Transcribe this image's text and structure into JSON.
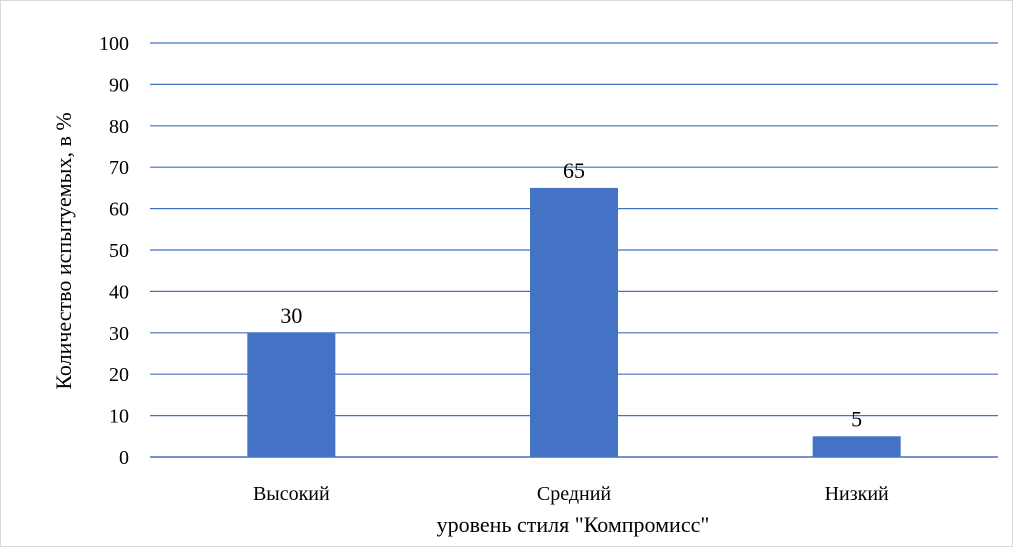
{
  "chart_data": {
    "type": "bar",
    "categories": [
      "Высокий",
      "Средний",
      "Низкий"
    ],
    "values": [
      30,
      65,
      5
    ],
    "data_labels": [
      "30",
      "65",
      "5"
    ],
    "title": "",
    "xlabel": "уровень стиля \"Компромисс\"",
    "ylabel": "Количество испытуемых, в %",
    "ylim": [
      0,
      100
    ],
    "yticks": [
      "0",
      "10",
      "20",
      "30",
      "40",
      "50",
      "60",
      "70",
      "80",
      "90",
      "100"
    ],
    "grid": true,
    "legend": "none",
    "colors": {
      "bar": "#4472c4",
      "grid": "#4472c4",
      "text": "#000000"
    }
  }
}
